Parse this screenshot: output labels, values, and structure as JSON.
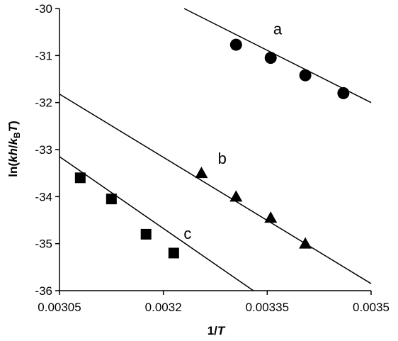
{
  "chart_data": {
    "type": "scatter",
    "title": "",
    "xlabel": {
      "main": "1/",
      "italic": "T"
    },
    "ylabel": {
      "prefix": "ln(",
      "k": "k",
      "h": "h",
      "slash": "/",
      "kb": "k",
      "sub": "B",
      "T": "T",
      "suffix": ")"
    },
    "xlim": [
      0.00305,
      0.0035
    ],
    "ylim": [
      -36,
      -30
    ],
    "x_ticks": [
      0.00305,
      0.0032,
      0.00335,
      0.0035
    ],
    "x_tick_labels": [
      "0.00305",
      "0.0032",
      "0.00335",
      "0.0035"
    ],
    "y_ticks": [
      -36,
      -35,
      -34,
      -33,
      -32,
      -31,
      -30
    ],
    "y_tick_labels": [
      "-36",
      "-35",
      "-34",
      "-33",
      "-32",
      "-31",
      "-30"
    ],
    "grid": false,
    "legend": "none",
    "series": [
      {
        "name": "a",
        "marker": "circle",
        "x": [
          0.003305,
          0.003355,
          0.003405,
          0.00346
        ],
        "y": [
          -30.77,
          -31.05,
          -31.42,
          -31.8
        ],
        "trendline": {
          "x": [
            0.00323,
            0.0035
          ],
          "y": [
            -30.0,
            -32.0
          ]
        },
        "label_at": {
          "x": 0.003365,
          "y": -30.55
        }
      },
      {
        "name": "b",
        "marker": "triangle",
        "x": [
          0.003255,
          0.003305,
          0.003355,
          0.003405
        ],
        "y": [
          -33.5,
          -34.0,
          -34.45,
          -35.0
        ],
        "trendline": {
          "x": [
            0.00305,
            0.0035
          ],
          "y": [
            -31.82,
            -35.85
          ]
        },
        "label_at": {
          "x": 0.003285,
          "y": -33.3
        }
      },
      {
        "name": "c",
        "marker": "square",
        "x": [
          0.00308,
          0.003125,
          0.003175,
          0.003215
        ],
        "y": [
          -33.6,
          -34.05,
          -34.8,
          -35.2
        ],
        "trendline": {
          "x": [
            0.00305,
            0.00333
          ],
          "y": [
            -33.15,
            -36.0
          ]
        },
        "label_at": {
          "x": 0.003235,
          "y": -34.9
        }
      }
    ]
  }
}
